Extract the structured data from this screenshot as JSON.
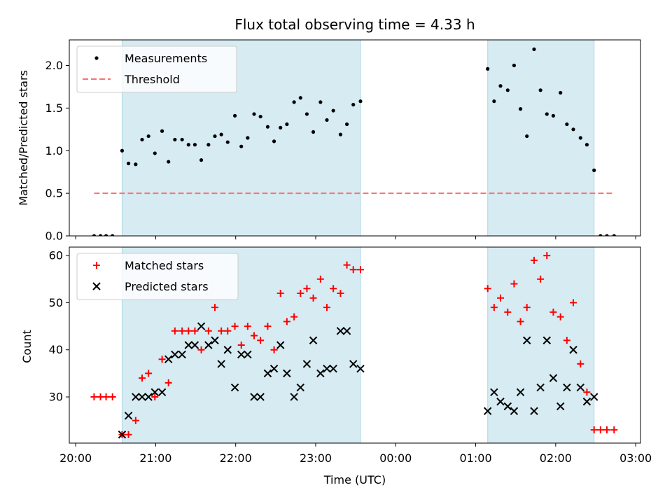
{
  "chart_data": [
    {
      "type": "scatter",
      "title": "Flux total observing time = 4.33 h",
      "xlabel": "",
      "ylabel": "Matched/Predicted stars",
      "ylim": [
        0,
        2.3
      ],
      "yticks": [
        0.0,
        0.5,
        1.0,
        1.5,
        2.0
      ],
      "ytick_labels": [
        "0.0",
        "0.5",
        "1.0",
        "1.5",
        "2.0"
      ],
      "grid": false,
      "legend_position": "upper-left",
      "shaded_intervals_hours": [
        [
          20.58,
          23.56
        ],
        [
          25.15,
          26.48
        ]
      ],
      "shade_color": "#add8e6",
      "series": [
        {
          "name": "Measurements",
          "marker": "dot",
          "color": "#000000",
          "x": [
            20.23,
            20.31,
            20.38,
            20.46,
            20.58,
            20.66,
            20.75,
            20.83,
            20.91,
            20.99,
            21.08,
            21.16,
            21.24,
            21.33,
            21.41,
            21.49,
            21.57,
            21.66,
            21.74,
            21.82,
            21.9,
            21.99,
            22.07,
            22.15,
            22.23,
            22.31,
            22.4,
            22.48,
            22.56,
            22.64,
            22.73,
            22.81,
            22.89,
            22.97,
            23.06,
            23.14,
            23.22,
            23.31,
            23.39,
            23.47,
            23.56,
            25.15,
            25.23,
            25.31,
            25.4,
            25.48,
            25.56,
            25.64,
            25.73,
            25.81,
            25.89,
            25.97,
            26.06,
            26.14,
            26.22,
            26.31,
            26.39,
            26.48,
            26.56,
            26.64,
            26.73
          ],
          "y": [
            0.0,
            0.0,
            0.0,
            0.0,
            1.0,
            0.85,
            0.84,
            1.13,
            1.17,
            0.97,
            1.23,
            0.87,
            1.13,
            1.13,
            1.07,
            1.07,
            0.89,
            1.07,
            1.17,
            1.19,
            1.1,
            1.41,
            1.05,
            1.15,
            1.43,
            1.4,
            1.28,
            1.11,
            1.27,
            1.31,
            1.57,
            1.62,
            1.43,
            1.22,
            1.57,
            1.36,
            1.47,
            1.19,
            1.31,
            1.54,
            1.58,
            1.96,
            1.58,
            1.76,
            1.71,
            2.0,
            1.49,
            1.17,
            2.19,
            1.71,
            1.43,
            1.41,
            1.68,
            1.31,
            1.25,
            1.15,
            1.07,
            0.77,
            0.0,
            0.0,
            0.0
          ]
        },
        {
          "name": "Threshold",
          "style": "dashed",
          "color": "#ff7070",
          "x": [
            20.23,
            26.73
          ],
          "y": [
            0.5,
            0.5
          ]
        }
      ]
    },
    {
      "type": "scatter",
      "title": "",
      "xlabel": "Time (UTC)",
      "ylabel": "Count",
      "ylim": [
        20.2,
        61.8
      ],
      "yticks": [
        30,
        40,
        50,
        60
      ],
      "ytick_labels": [
        "30",
        "40",
        "50",
        "60"
      ],
      "xlim_hours": [
        19.92,
        27.06
      ],
      "xticks_hours": [
        20,
        21,
        22,
        23,
        24,
        25,
        26,
        27
      ],
      "xtick_labels": [
        "20:00",
        "21:00",
        "22:00",
        "23:00",
        "00:00",
        "01:00",
        "02:00",
        "03:00"
      ],
      "grid": false,
      "legend_position": "upper-left",
      "shaded_intervals_hours": [
        [
          20.58,
          23.56
        ],
        [
          25.15,
          26.48
        ]
      ],
      "shade_color": "#add8e6",
      "series": [
        {
          "name": "Matched stars",
          "marker": "plus",
          "color": "#ff0000",
          "x": [
            20.23,
            20.31,
            20.38,
            20.46,
            20.58,
            20.66,
            20.75,
            20.83,
            20.91,
            20.99,
            21.08,
            21.16,
            21.24,
            21.33,
            21.41,
            21.49,
            21.57,
            21.66,
            21.74,
            21.82,
            21.9,
            21.99,
            22.07,
            22.15,
            22.23,
            22.31,
            22.4,
            22.48,
            22.56,
            22.64,
            22.73,
            22.81,
            22.89,
            22.97,
            23.06,
            23.14,
            23.22,
            23.31,
            23.39,
            23.47,
            23.56,
            25.15,
            25.23,
            25.31,
            25.4,
            25.48,
            25.56,
            25.64,
            25.73,
            25.81,
            25.89,
            25.97,
            26.06,
            26.14,
            26.22,
            26.31,
            26.39,
            26.48,
            26.56,
            26.64,
            26.73
          ],
          "y": [
            30,
            30,
            30,
            30,
            22,
            22,
            25,
            34,
            35,
            30,
            38,
            33,
            44,
            44,
            44,
            44,
            40,
            44,
            49,
            44,
            44,
            45,
            41,
            45,
            43,
            42,
            45,
            40,
            52,
            46,
            47,
            52,
            53,
            51,
            55,
            49,
            53,
            52,
            58,
            57,
            57,
            53,
            49,
            51,
            48,
            54,
            46,
            49,
            59,
            55,
            60,
            48,
            47,
            42,
            50,
            37,
            31,
            23,
            23,
            23,
            23
          ]
        },
        {
          "name": "Predicted stars",
          "marker": "x",
          "color": "#000000",
          "x": [
            20.58,
            20.66,
            20.75,
            20.83,
            20.91,
            20.99,
            21.08,
            21.16,
            21.24,
            21.33,
            21.41,
            21.49,
            21.57,
            21.66,
            21.74,
            21.82,
            21.9,
            21.99,
            22.07,
            22.15,
            22.23,
            22.31,
            22.4,
            22.48,
            22.56,
            22.64,
            22.73,
            22.81,
            22.89,
            22.97,
            23.06,
            23.14,
            23.22,
            23.31,
            23.39,
            23.47,
            23.56,
            25.15,
            25.23,
            25.31,
            25.4,
            25.48,
            25.56,
            25.64,
            25.73,
            25.81,
            25.89,
            25.97,
            26.06,
            26.14,
            26.22,
            26.31,
            26.39,
            26.48
          ],
          "y": [
            22,
            26,
            30,
            30,
            30,
            31,
            31,
            38,
            39,
            39,
            41,
            41,
            45,
            41,
            42,
            37,
            40,
            32,
            39,
            39,
            30,
            30,
            35,
            36,
            41,
            35,
            30,
            32,
            37,
            42,
            35,
            36,
            36,
            44,
            44,
            37,
            36,
            27,
            31,
            29,
            28,
            27,
            31,
            42,
            27,
            32,
            42,
            34,
            28,
            32,
            40,
            32,
            29,
            30
          ]
        }
      ]
    }
  ]
}
